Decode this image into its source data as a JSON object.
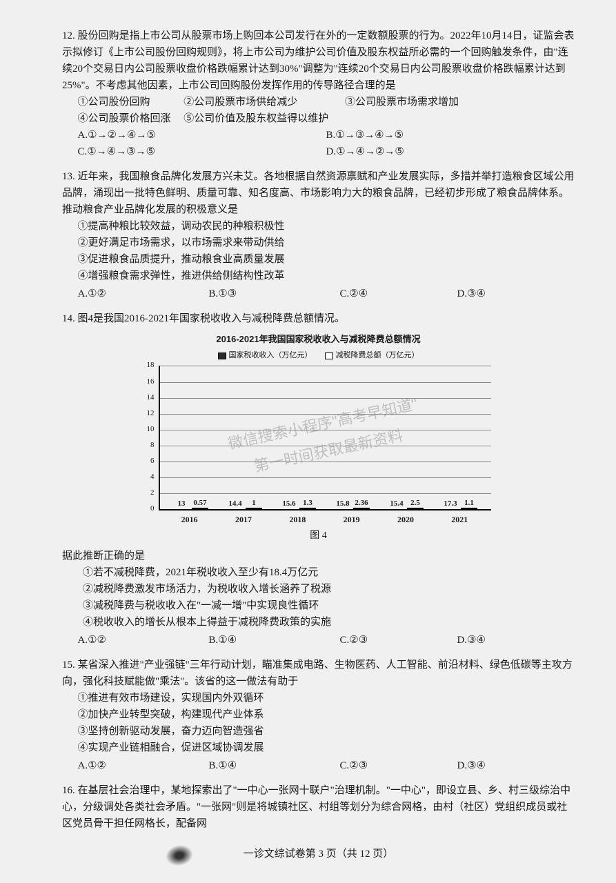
{
  "q12": {
    "num": "12.",
    "text": "股份回购是指上市公司从股票市场上购回本公司发行在外的一定数额股票的行为。2022年10月14日，证监会表示拟修订《上市公司股份回购规则》，将上市公司为维护公司价值及股东权益所必需的一个回购触发条件，由\"连续20个交易日内公司股票收盘价格跌幅累计达到30%\"调整为\"连续20个交易日内公司股票收盘价格跌幅累计达到25%\"。不考虑其他因素，上市公司回购股份发挥作用的传导路径合理的是",
    "s1": "①公司股份回购",
    "s2": "②公司股票市场供给减少",
    "s3": "③公司股票市场需求增加",
    "s4": "④公司股票价格回涨",
    "s5": "⑤公司价值及股东权益得以维护",
    "a": "A.①→②→④→⑤",
    "b": "B.①→③→④→⑤",
    "c": "C.①→④→③→⑤",
    "d": "D.①→④→②→⑤"
  },
  "q13": {
    "num": "13.",
    "text": "近年来，我国粮食品牌化发展方兴未艾。各地根据自然资源禀赋和产业发展实际，多措并举打造粮食区域公用品牌，涌现出一批特色鲜明、质量可靠、知名度高、市场影响力大的粮食品牌，已经初步形成了粮食品牌体系。推动粮食产业品牌化发展的积极意义是",
    "s1": "①提高种粮比较效益，调动农民的种粮积极性",
    "s2": "②更好满足市场需求，以市场需求来带动供给",
    "s3": "③促进粮食品质提升，推动粮食业高质量发展",
    "s4": "④增强粮食需求弹性，推进供给侧结构性改革",
    "a": "A.①②",
    "b": "B.①③",
    "c": "C.②④",
    "d": "D.③④"
  },
  "q14": {
    "num": "14.",
    "intro": "图4是我国2016-2021年国家税收收入与减税降费总额情况。",
    "chart": {
      "title": "2016-2021年我国国家税收收入与减税降费总额情况",
      "legend1": "国家税收收入（万亿元）",
      "legend2": "减税降费总额（万亿元）",
      "caption": "图 4",
      "ymax": 18,
      "ystep": 2,
      "bar_dark_color": "#2a2a2a",
      "bar_light_color": "#ffffff",
      "grid_color": "#888888",
      "years": [
        "2016",
        "2017",
        "2018",
        "2019",
        "2020",
        "2021"
      ],
      "series1": [
        13,
        14.4,
        15.6,
        15.8,
        15.4,
        17.3
      ],
      "series2": [
        0.57,
        1,
        1.3,
        2.36,
        2.5,
        1.1
      ],
      "labels1": [
        "13",
        "14.4",
        "15.6",
        "15.8",
        "15.4",
        "17.3"
      ],
      "labels2": [
        "0.57",
        "1",
        "1.3",
        "2.36",
        "2.5",
        "1.1"
      ]
    },
    "stem": "据此推断正确的是",
    "s1": "①若不减税降费，2021年税收收入至少有18.4万亿元",
    "s2": "②减税降费激发市场活力，为税收收入增长涵养了税源",
    "s3": "③减税降费与税收收入在\"一减一增\"中实现良性循环",
    "s4": "④税收收入的增长从根本上得益于减税降费政策的实施",
    "a": "A.①②",
    "b": "B.①④",
    "c": "C.②③",
    "d": "D.③④"
  },
  "q15": {
    "num": "15.",
    "text": "某省深入推进\"产业强链\"三年行动计划，瞄准集成电路、生物医药、人工智能、前沿材料、绿色低碳等主攻方向，强化科技赋能做\"乘法\"。该省的这一做法有助于",
    "s1": "①推进有效市场建设，实现国内外双循环",
    "s2": "②加快产业转型突破，构建现代产业体系",
    "s3": "③坚持创新驱动发展，奋力迈向智造强省",
    "s4": "④实现产业链相融合，促进区域协调发展",
    "a": "A.①②",
    "b": "B.①④",
    "c": "C.②③",
    "d": "D.③④"
  },
  "q16": {
    "num": "16.",
    "text": "在基层社会治理中，某地探索出了\"一中心一张网十联户\"治理机制。\"一中心\"，即设立县、乡、村三级综治中心，分级调处各类社会矛盾。\"一张网\"则是将城镇社区、村组等划分为综合网格，由村（社区）党组织成员或社区党员骨干担任网格长，配备网"
  },
  "footer": "一诊文综试卷第 3 页（共 12 页）",
  "watermark": {
    "line1": "微信搜索小程序\"高考早知道\"",
    "line2": "第一时间获取最新资料"
  }
}
